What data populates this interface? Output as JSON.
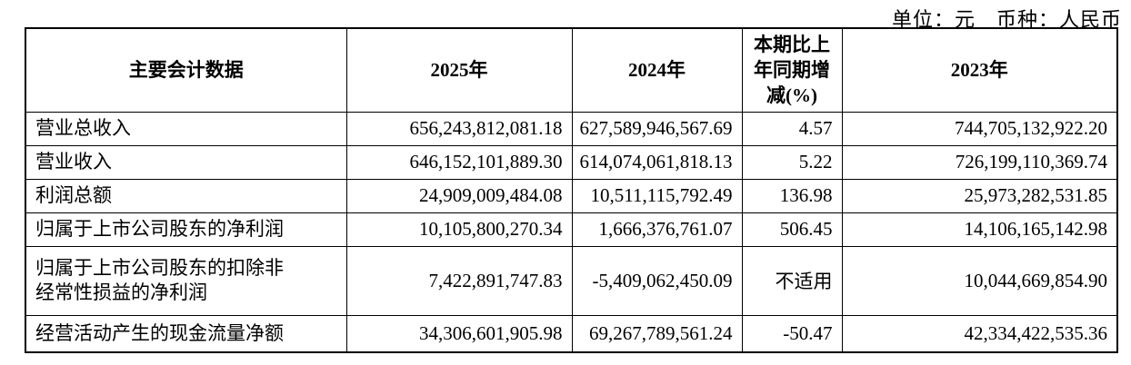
{
  "unit_line": "单位：元　币种：人民币",
  "colors": {
    "text": "#000000",
    "border": "#000000",
    "background": "#ffffff"
  },
  "table": {
    "columns": [
      "主要会计数据",
      "2025年",
      "2024年",
      "本期比上年同期增减(%)",
      "2023年"
    ],
    "rows": [
      [
        "营业总收入",
        "656,243,812,081.18",
        "627,589,946,567.69",
        "4.57",
        "744,705,132,922.20"
      ],
      [
        "营业收入",
        "646,152,101,889.30",
        "614,074,061,818.13",
        "5.22",
        "726,199,110,369.74"
      ],
      [
        "利润总额",
        "24,909,009,484.08",
        "10,511,115,792.49",
        "136.98",
        "25,973,282,531.85"
      ],
      [
        "归属于上市公司股东的净利润",
        "10,105,800,270.34",
        "1,666,376,761.07",
        "506.45",
        "14,106,165,142.98"
      ],
      [
        "归属于上市公司股东的扣除非经常性损益的净利润",
        "7,422,891,747.83",
        "-5,409,062,450.09",
        "不适用",
        "10,044,669,854.90"
      ],
      [
        "经营活动产生的现金流量净额",
        "34,306,601,905.98",
        "69,267,789,561.24",
        "-50.47",
        "42,334,422,535.36"
      ]
    ]
  }
}
